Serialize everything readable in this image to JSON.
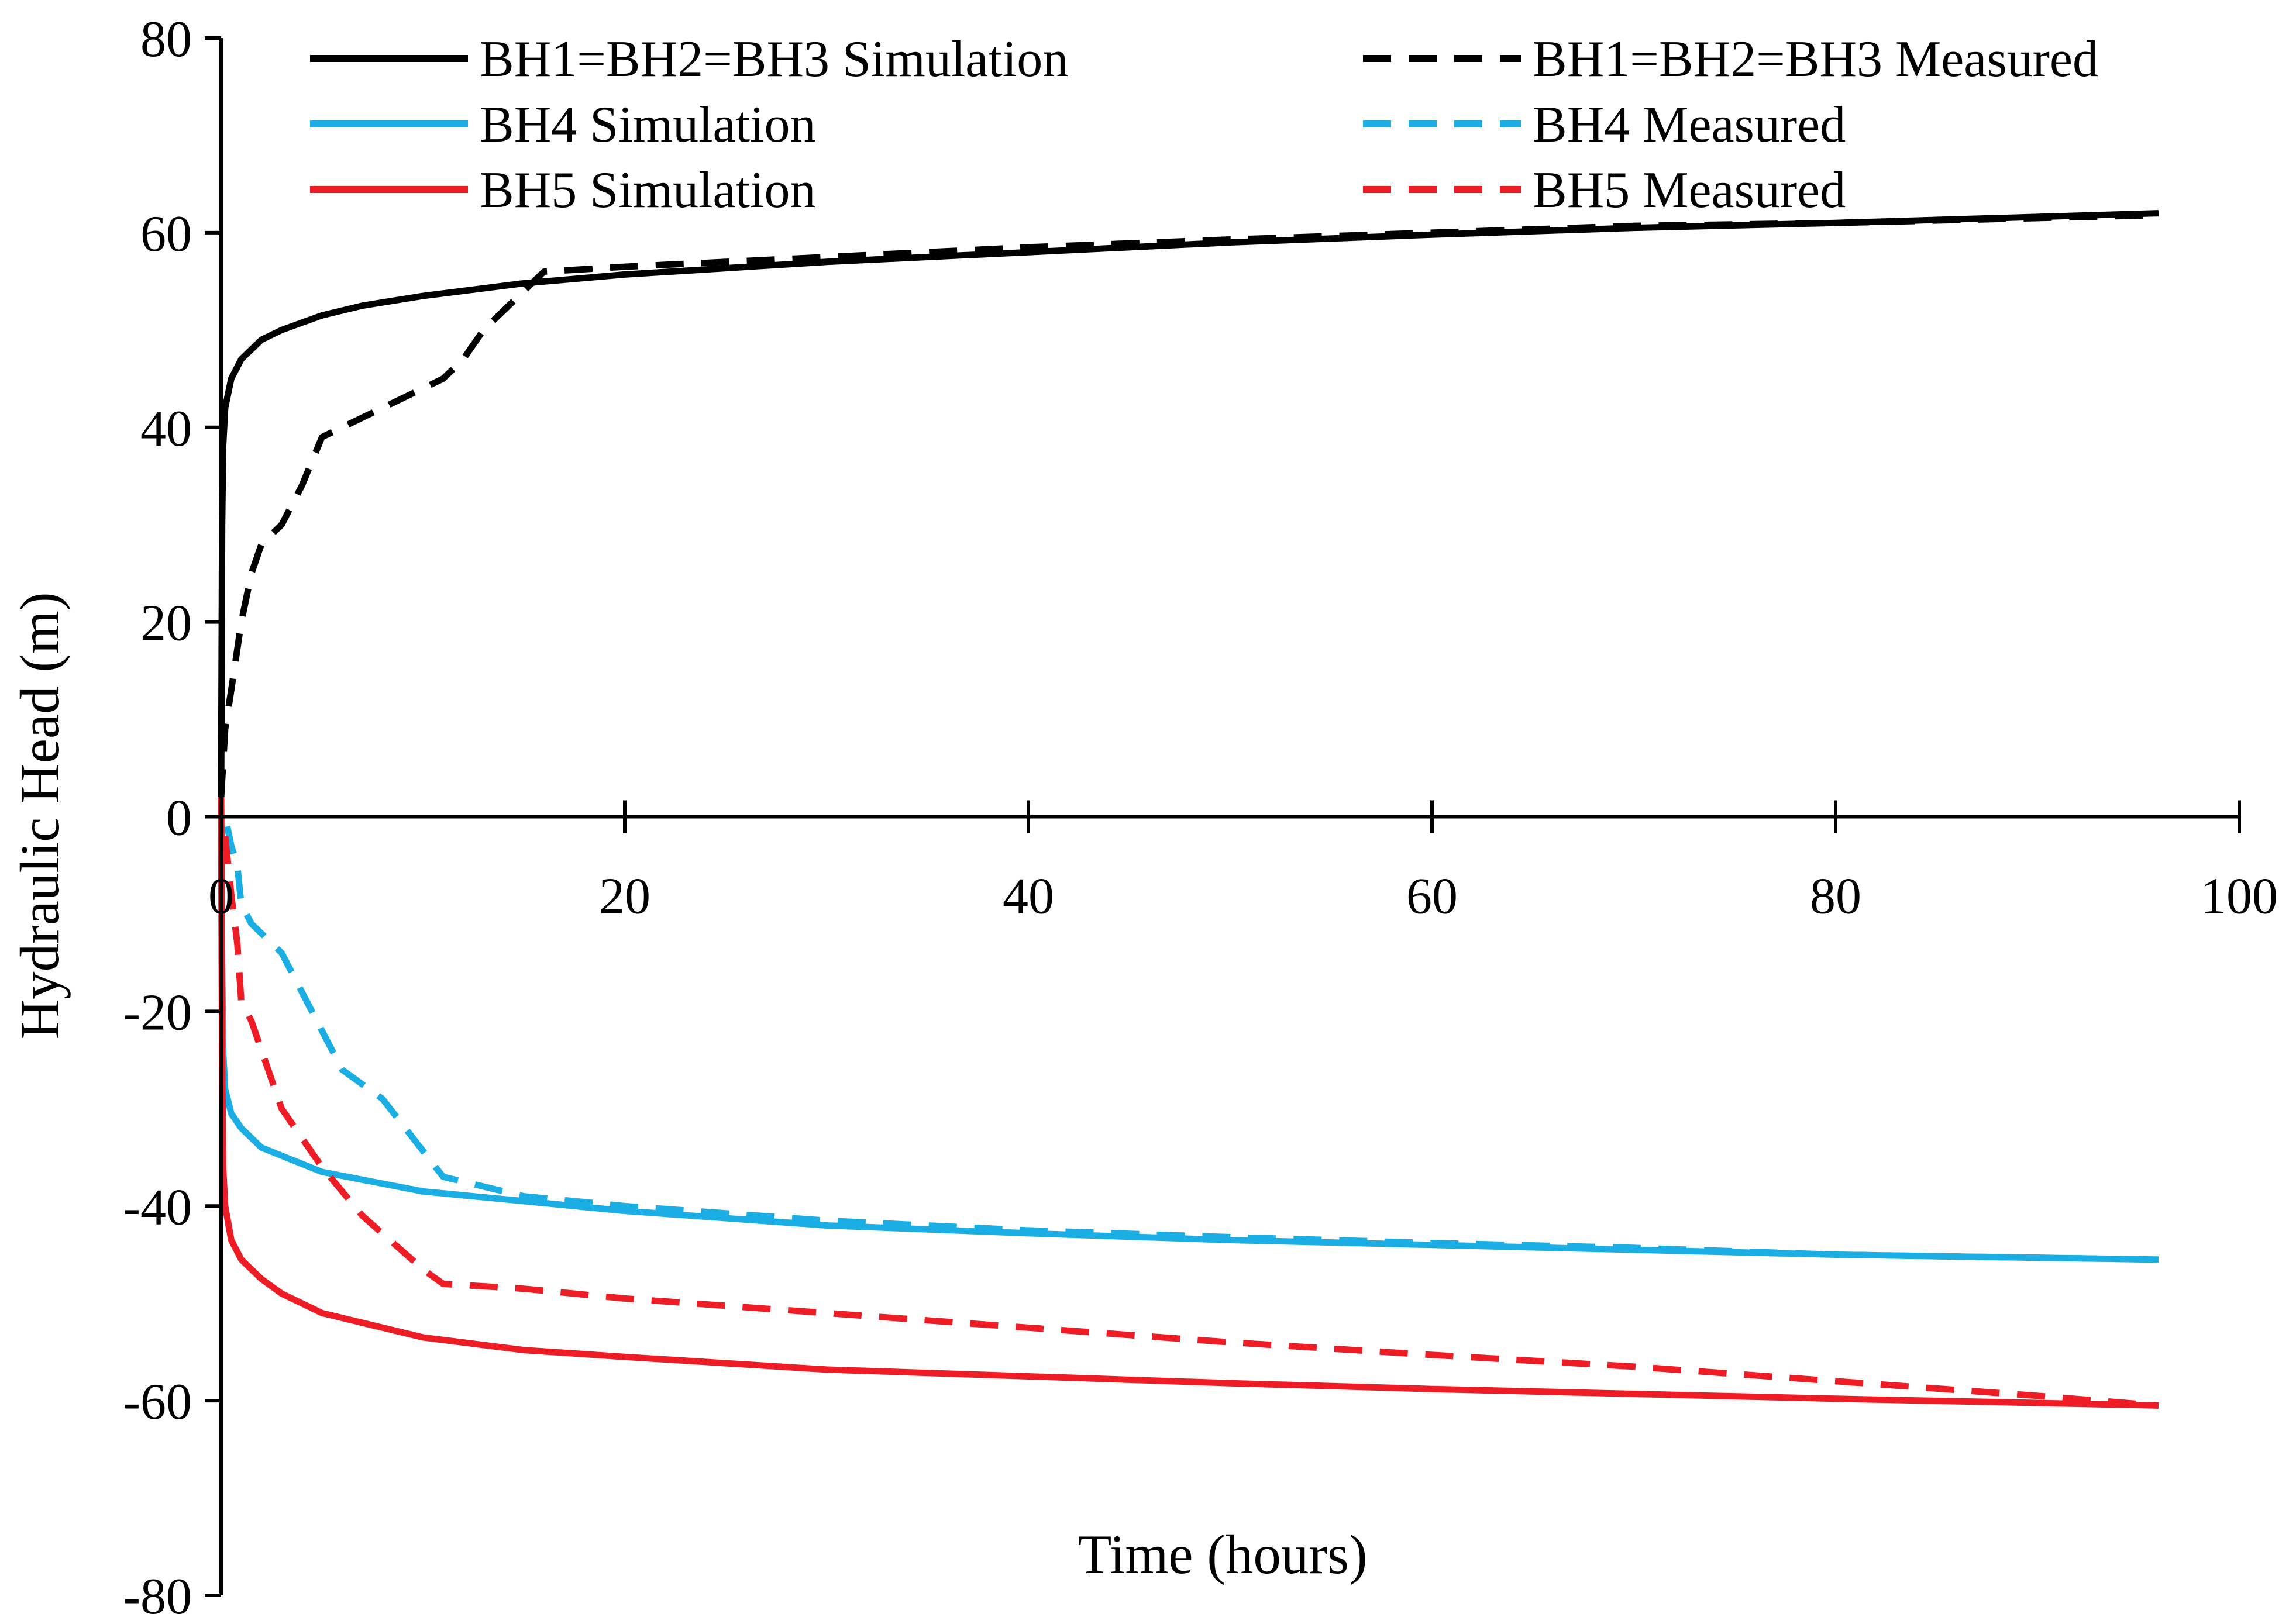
{
  "chart_data": {
    "type": "line",
    "title": "",
    "xlabel": "Time (hours)",
    "ylabel": "Hydraulic Head (m)",
    "xlim": [
      0,
      100
    ],
    "ylim": [
      -80,
      80
    ],
    "xticks": [
      0,
      20,
      40,
      60,
      80,
      100
    ],
    "yticks": [
      80,
      60,
      40,
      20,
      0,
      -20,
      -40,
      -60,
      -80
    ],
    "xtick_labels": [
      "0",
      "20",
      "40",
      "60",
      "80",
      "100"
    ],
    "ytick_labels": [
      "80",
      "60",
      "40",
      "20",
      "0",
      "-20",
      "-40",
      "-60",
      "-80"
    ],
    "grid": false,
    "legend_position": "top",
    "series": [
      {
        "name": "BH1=BH2=BH3 Simulation",
        "color": "#000000",
        "dash": "solid",
        "x": [
          0,
          0.05,
          0.1,
          0.2,
          0.5,
          1,
          2,
          3,
          5,
          7,
          10,
          15,
          20,
          30,
          40,
          50,
          60,
          70,
          80,
          96
        ],
        "y": [
          2,
          30,
          38,
          42,
          45,
          47,
          49,
          50,
          51.5,
          52.5,
          53.5,
          54.8,
          55.7,
          57,
          58,
          59,
          59.8,
          60.5,
          61,
          62
        ]
      },
      {
        "name": "BH1=BH2=BH3 Measured",
        "color": "#000000",
        "dash": "dashed",
        "x": [
          0,
          0.2,
          0.5,
          1,
          1.5,
          2,
          3,
          4,
          5,
          6,
          8,
          11,
          12,
          13,
          14,
          15,
          16,
          20,
          30,
          40,
          50,
          60,
          70,
          80,
          96
        ],
        "y": [
          2,
          9,
          13,
          20,
          25,
          28,
          30,
          34,
          39,
          40,
          42,
          45,
          47,
          50,
          52,
          54,
          56,
          56.5,
          57.5,
          58.5,
          59.3,
          60,
          60.7,
          61,
          61.8
        ]
      },
      {
        "name": "BH4 Simulation",
        "color": "#1aaee5",
        "dash": "solid",
        "x": [
          0,
          0.05,
          0.1,
          0.2,
          0.5,
          1,
          2,
          5,
          10,
          15,
          20,
          30,
          40,
          50,
          60,
          70,
          80,
          96
        ],
        "y": [
          2,
          -15,
          -24,
          -28,
          -30.5,
          -32,
          -34,
          -36.5,
          -38.5,
          -39.5,
          -40.5,
          -42,
          -42.8,
          -43.5,
          -44,
          -44.5,
          -45,
          -45.5
        ]
      },
      {
        "name": "BH4 Measured",
        "color": "#1aaee5",
        "dash": "dashed",
        "x": [
          0.3,
          0.5,
          0.8,
          1,
          1.5,
          2,
          3,
          4,
          5,
          6,
          8,
          11,
          15,
          20,
          30,
          40,
          50,
          60,
          70,
          80,
          96
        ],
        "y": [
          -1,
          -3,
          -5,
          -9,
          -11,
          -12,
          -14,
          -18,
          -22,
          -26,
          -29,
          -37,
          -39,
          -40,
          -41.5,
          -42.5,
          -43.2,
          -43.8,
          -44.3,
          -45,
          -45.5
        ]
      },
      {
        "name": "BH5 Simulation",
        "color": "#ee1c25",
        "dash": "solid",
        "x": [
          0,
          0.05,
          0.1,
          0.2,
          0.5,
          1,
          2,
          3,
          5,
          10,
          15,
          20,
          30,
          40,
          50,
          60,
          70,
          80,
          96
        ],
        "y": [
          2,
          -25,
          -36,
          -40,
          -43.5,
          -45.5,
          -47.5,
          -49,
          -51,
          -53.5,
          -54.8,
          -55.5,
          -56.8,
          -57.5,
          -58.2,
          -58.8,
          -59.3,
          -59.8,
          -60.5
        ]
      },
      {
        "name": "BH5 Measured",
        "color": "#ee1c25",
        "dash": "dashed",
        "x": [
          0.2,
          0.5,
          0.8,
          1,
          1.5,
          2,
          3,
          5,
          7,
          10,
          11,
          15,
          20,
          30,
          40,
          50,
          60,
          70,
          80,
          90,
          96
        ],
        "y": [
          -2,
          -8,
          -13,
          -19,
          -21,
          -24,
          -30,
          -36,
          -41,
          -46.5,
          -48,
          -48.5,
          -49.5,
          -51,
          -52.5,
          -54,
          -55.3,
          -56.5,
          -58,
          -59.5,
          -60.5
        ]
      }
    ]
  }
}
